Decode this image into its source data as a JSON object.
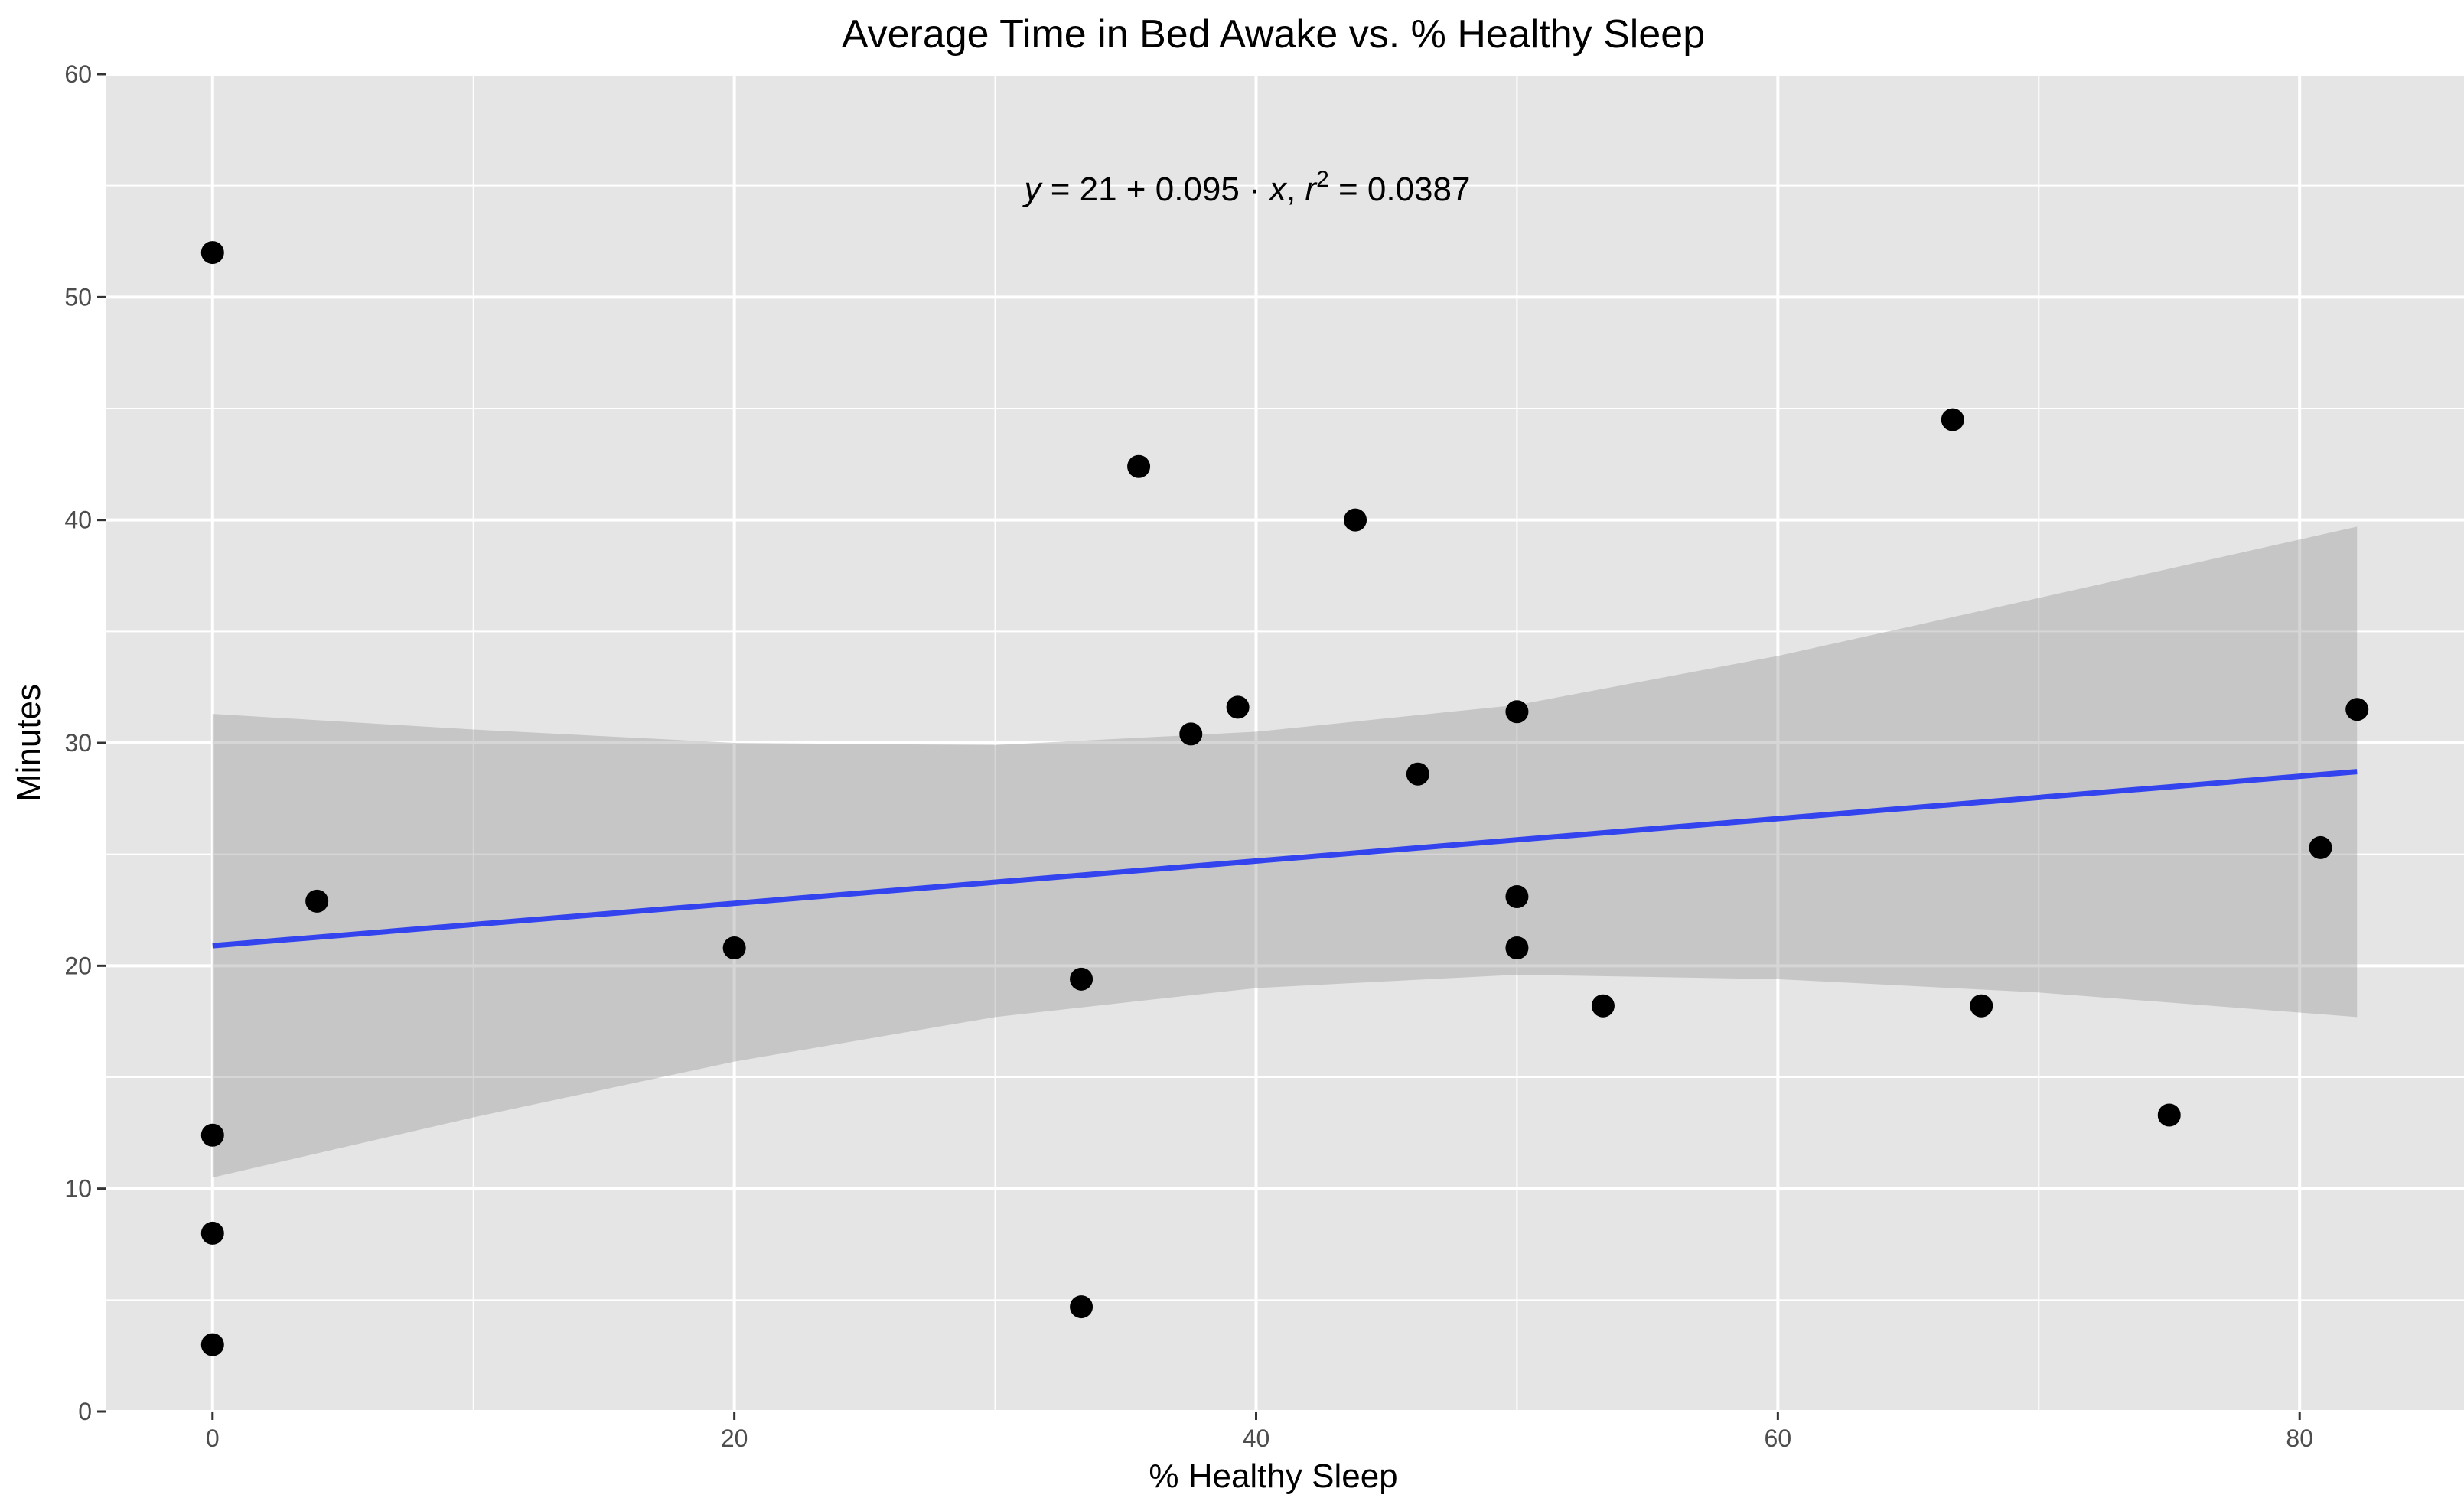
{
  "chart_data": {
    "type": "scatter",
    "title": "Average Time in Bed Awake vs. % Healthy Sleep",
    "xlabel": "% Healthy Sleep",
    "ylabel": "Minutes",
    "xlim": [
      -4.1,
      86.3
    ],
    "ylim": [
      0,
      60
    ],
    "x_ticks": [
      0,
      20,
      40,
      60,
      80
    ],
    "y_ticks": [
      0,
      10,
      20,
      30,
      40,
      50,
      60
    ],
    "grid": true,
    "colors": {
      "panel": "#e5e5e5",
      "grid": "#ffffff",
      "points": "#000000",
      "line": "#3344ee",
      "ribbon": "#999999"
    },
    "points": [
      {
        "x": 0,
        "y": 52.0
      },
      {
        "x": 0,
        "y": 12.4
      },
      {
        "x": 0,
        "y": 8.0
      },
      {
        "x": 0,
        "y": 3.0
      },
      {
        "x": 4.0,
        "y": 22.9
      },
      {
        "x": 20.0,
        "y": 20.8
      },
      {
        "x": 33.3,
        "y": 19.4
      },
      {
        "x": 33.3,
        "y": 4.7
      },
      {
        "x": 35.5,
        "y": 42.4
      },
      {
        "x": 37.5,
        "y": 30.4
      },
      {
        "x": 39.3,
        "y": 31.6
      },
      {
        "x": 43.8,
        "y": 40.0
      },
      {
        "x": 46.2,
        "y": 28.6
      },
      {
        "x": 50.0,
        "y": 31.4
      },
      {
        "x": 50.0,
        "y": 23.1
      },
      {
        "x": 50.0,
        "y": 20.8
      },
      {
        "x": 53.3,
        "y": 18.2
      },
      {
        "x": 66.7,
        "y": 44.5
      },
      {
        "x": 67.8,
        "y": 18.2
      },
      {
        "x": 75.0,
        "y": 13.3
      },
      {
        "x": 80.8,
        "y": 25.3
      },
      {
        "x": 82.2,
        "y": 31.5
      }
    ],
    "fit": {
      "intercept": 20.9,
      "slope": 0.095,
      "x_range": [
        0,
        82.2
      ],
      "ribbon": [
        {
          "x": 0,
          "lower": 10.5,
          "upper": 31.3
        },
        {
          "x": 10,
          "lower": 13.2,
          "upper": 30.6
        },
        {
          "x": 20,
          "lower": 15.7,
          "upper": 30.0
        },
        {
          "x": 30,
          "lower": 17.7,
          "upper": 29.9
        },
        {
          "x": 40,
          "lower": 19.0,
          "upper": 30.5
        },
        {
          "x": 50,
          "lower": 19.6,
          "upper": 31.7
        },
        {
          "x": 60,
          "lower": 19.4,
          "upper": 33.9
        },
        {
          "x": 70,
          "lower": 18.8,
          "upper": 36.5
        },
        {
          "x": 82.2,
          "lower": 17.7,
          "upper": 39.7
        }
      ]
    },
    "annotation": {
      "y_var": "y",
      "eq_rest": " = 21 + 0.095 · ",
      "x_var": "x",
      "sep": ",  ",
      "r_var": "r",
      "r_exp": "2",
      "r_value": " = 0.0387"
    }
  }
}
